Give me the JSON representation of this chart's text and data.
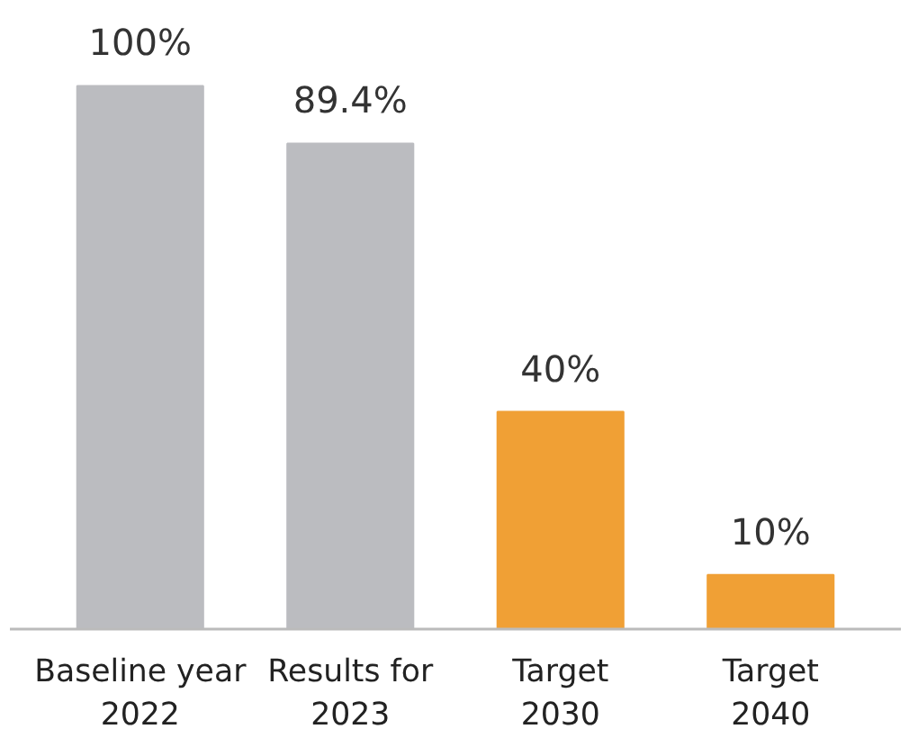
{
  "chart_data": {
    "type": "bar",
    "categories": [
      "Baseline year\n2022",
      "Results for\n2023",
      "Target\n2030",
      "Target\n2040"
    ],
    "values": [
      100,
      89.4,
      40,
      10
    ],
    "colors": [
      "#bbbcc0",
      "#bbbcc0",
      "#f0a035",
      "#f0a035"
    ],
    "value_labels": [
      "100%",
      "89.4%",
      "40%",
      "10%"
    ],
    "tick_labels": "x",
    "grid": false
  }
}
